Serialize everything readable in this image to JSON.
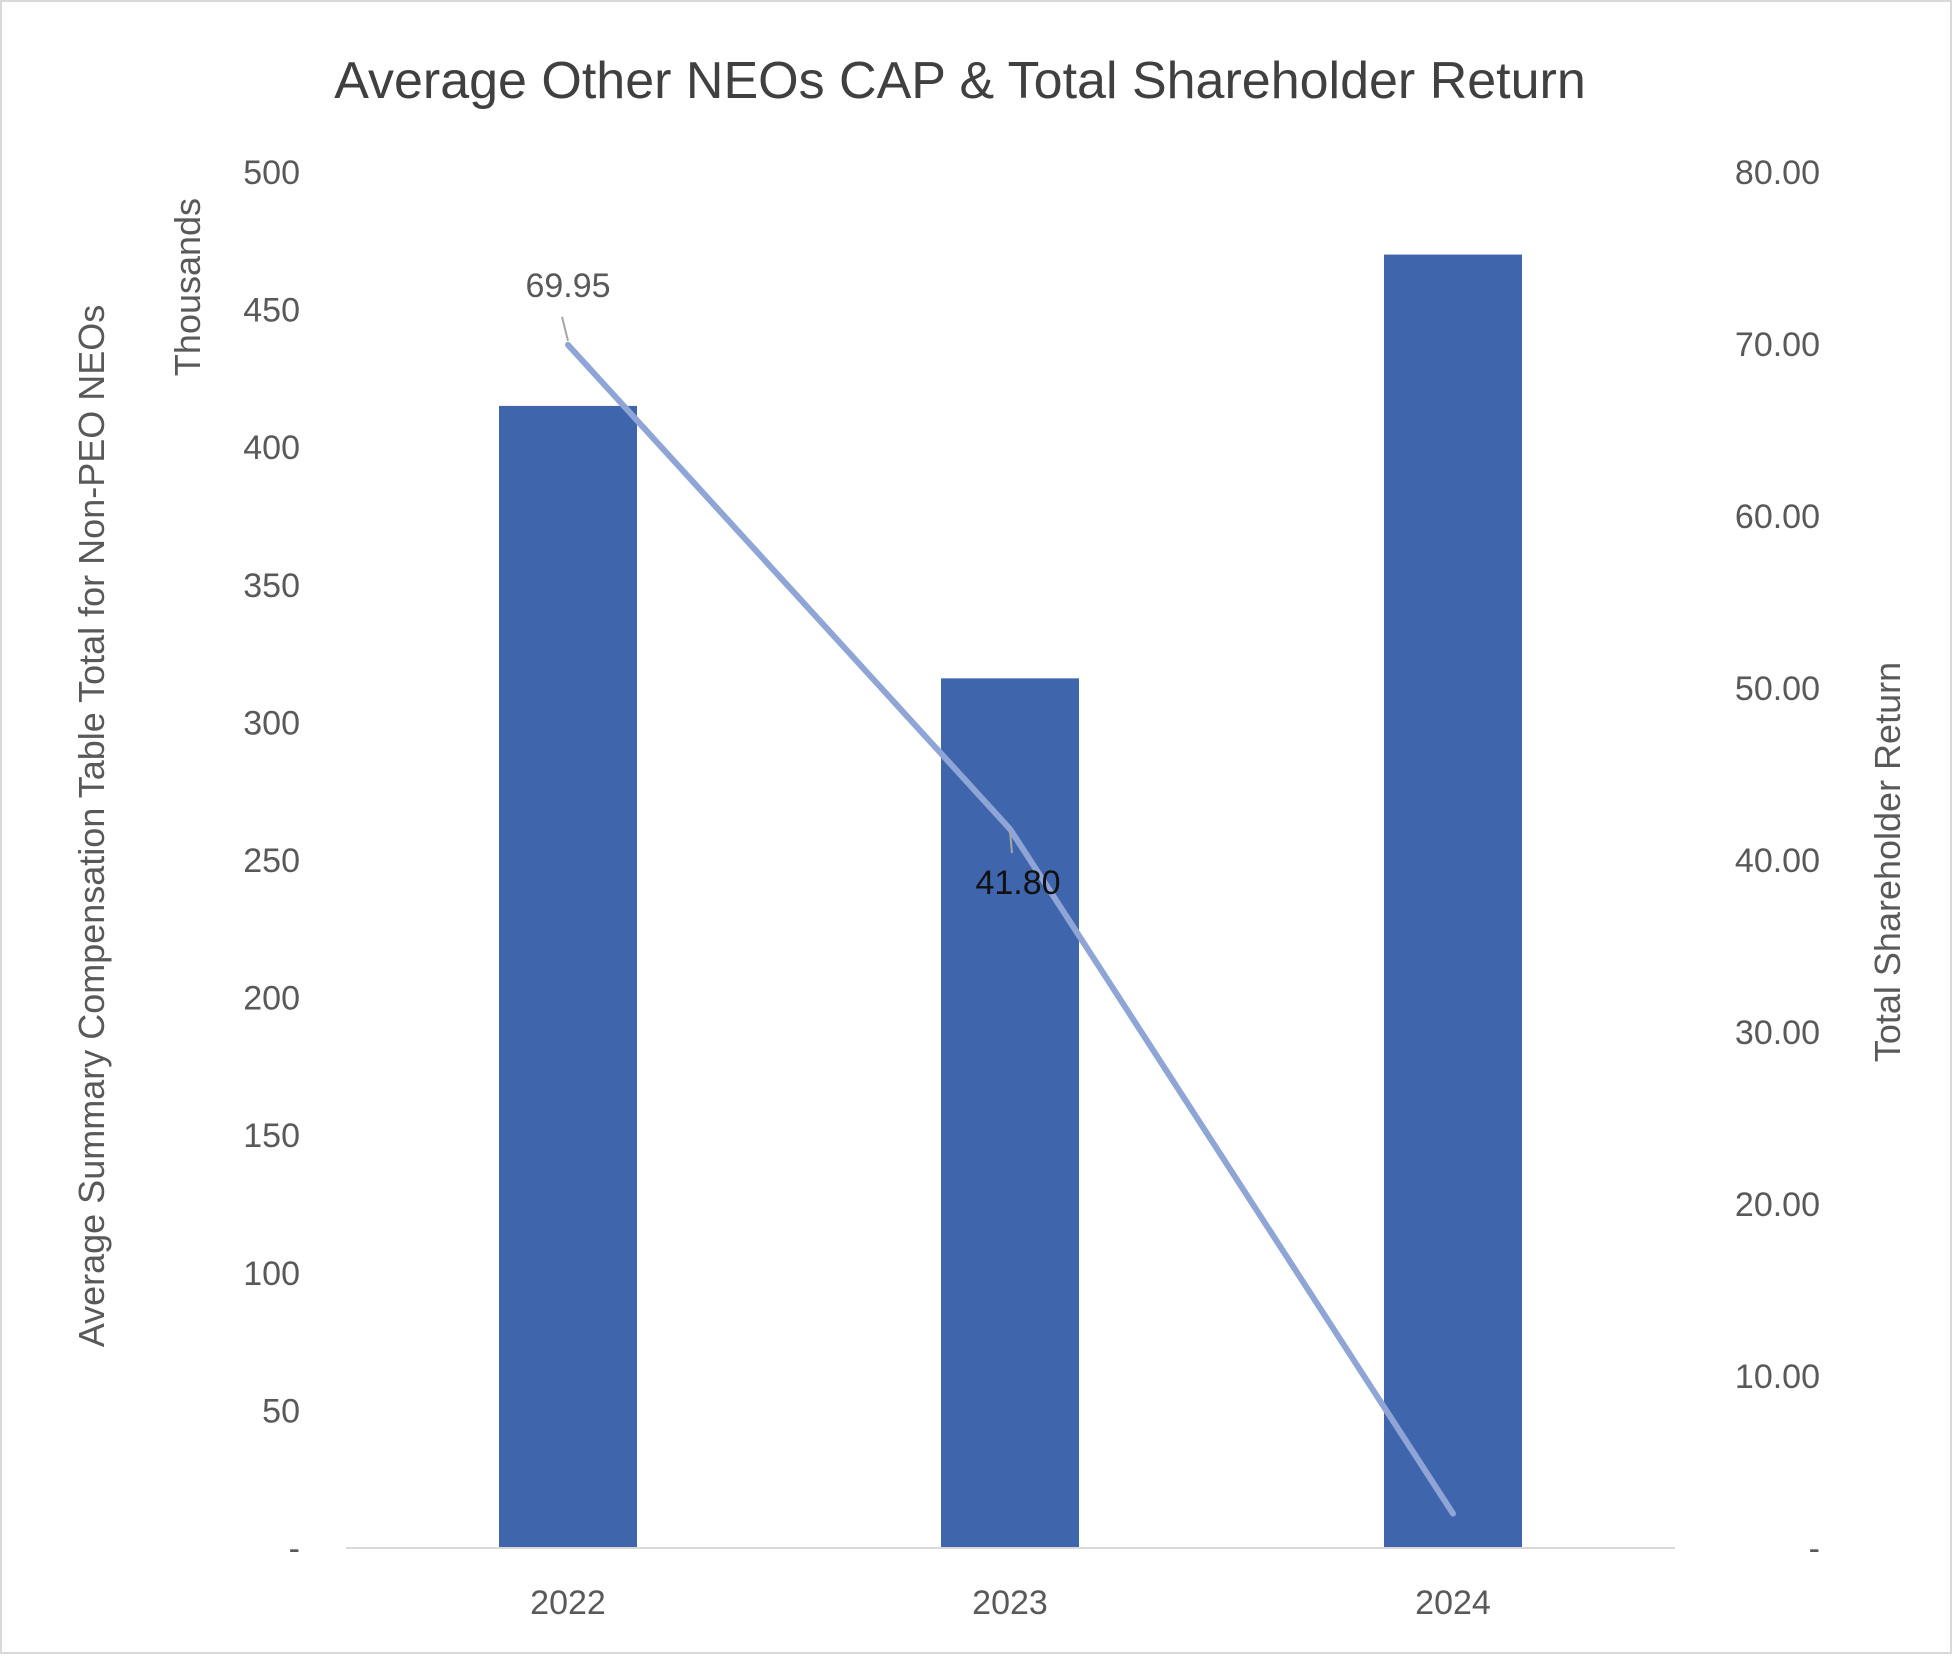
{
  "chart_data": {
    "type": "bar",
    "title": "Average Other NEOs CAP & Total Shareholder Return",
    "categories": [
      "2022",
      "2023",
      "2024"
    ],
    "series": [
      {
        "name": "Average Summary Compensation Table Total for Non-PEO NEOs",
        "type": "bar",
        "axis": "left",
        "values": [
          415,
          316,
          470
        ],
        "color": "#3F65AD"
      },
      {
        "name": "Total Shareholder Return",
        "type": "line",
        "axis": "right",
        "values": [
          69.95,
          41.8,
          2.0
        ],
        "data_labels": [
          "69.95",
          "41.80",
          null
        ],
        "color": "#8FA5D6"
      }
    ],
    "y_left": {
      "label": "Average Summary Compensation Table Total for Non-PEO NEOs",
      "units_label": "Thousands",
      "range": [
        0,
        500
      ],
      "ticks": [
        0,
        50,
        100,
        150,
        200,
        250,
        300,
        350,
        400,
        450,
        500
      ],
      "tick_labels": [
        "-",
        "50",
        "100",
        "150",
        "200",
        "250",
        "300",
        "350",
        "400",
        "450",
        "500"
      ]
    },
    "y_right": {
      "label": "Total Shareholder Return",
      "range": [
        0,
        80
      ],
      "ticks": [
        0,
        10,
        20,
        30,
        40,
        50,
        60,
        70,
        80
      ],
      "tick_labels": [
        "-",
        "10.00",
        "20.00",
        "30.00",
        "40.00",
        "50.00",
        "60.00",
        "70.00",
        "80.00"
      ]
    },
    "grid": false,
    "legend": "none"
  },
  "colors": {
    "bar": "#3F65AD",
    "line": "#8FA5D6",
    "text": "#595959",
    "title": "#404040",
    "axis_line": "#d9d9d9",
    "leader": "#a6a6a6"
  }
}
